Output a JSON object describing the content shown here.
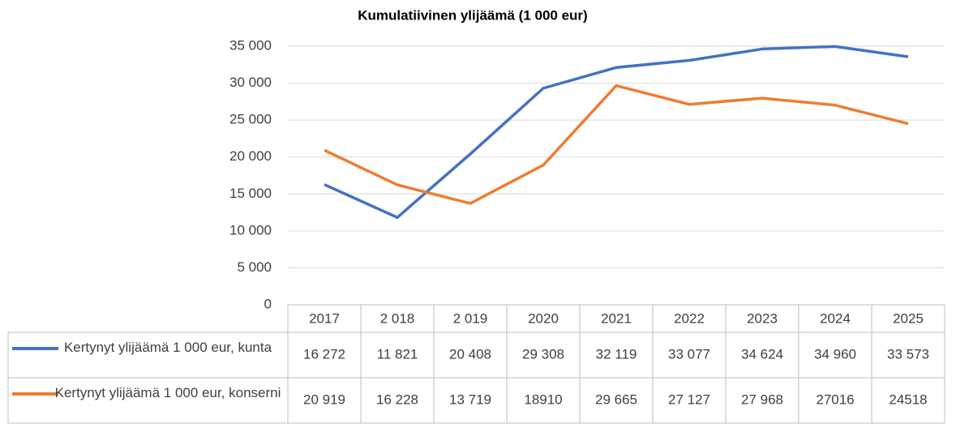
{
  "chart_data": {
    "type": "line",
    "title": "Kumulatiivinen ylijäämä (1 000 eur)",
    "categories": [
      "2017",
      "2 018",
      "2 019",
      "2020",
      "2021",
      "2022",
      "2023",
      "2024",
      "2025"
    ],
    "series": [
      {
        "name": "Kertynyt ylijäämä 1 000 eur, kunta",
        "color": "#4472c4",
        "values": [
          16272,
          11821,
          20408,
          29308,
          32119,
          33077,
          34624,
          34960,
          33573
        ],
        "value_labels": [
          "16 272",
          "11 821",
          "20 408",
          "29 308",
          "32 119",
          "33 077",
          "34 624",
          "34 960",
          "33 573"
        ]
      },
      {
        "name": "Kertynyt ylijäämä 1 000 eur, konserni",
        "color": "#ed7d31",
        "values": [
          20919,
          16228,
          13719,
          18910,
          29665,
          27127,
          27968,
          27016,
          24518
        ],
        "value_labels": [
          "20 919",
          "16 228",
          "13 719",
          "18910",
          "29 665",
          "27 127",
          "27 968",
          "27016",
          "24518"
        ]
      }
    ],
    "ylim": [
      0,
      35000
    ],
    "yticks": [
      0,
      {
        "value": 5000,
        "label": "5 000"
      },
      {
        "value": 10000,
        "label": "10 000"
      },
      {
        "value": 15000,
        "label": "15 000"
      },
      {
        "value": 20000,
        "label": "20 000"
      },
      {
        "value": 25000,
        "label": "25 000"
      },
      {
        "value": 30000,
        "label": "30 000"
      },
      {
        "value": 35000,
        "label": "35 000"
      }
    ],
    "grid": true
  }
}
